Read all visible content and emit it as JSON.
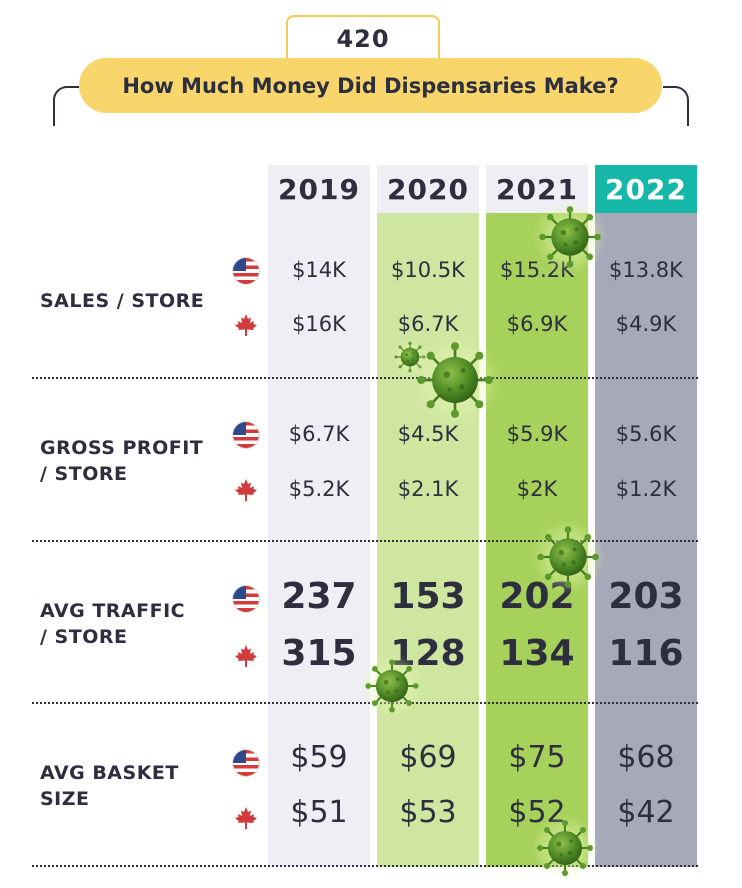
{
  "header": {
    "kicker": "420",
    "title": "How Much Money Did Dispensaries Make?"
  },
  "columns": [
    "2019",
    "2020",
    "2021",
    "2022"
  ],
  "rows": [
    {
      "label": "SALES / STORE",
      "us": [
        "$14K",
        "$10.5K",
        "$15.2K",
        "$13.8K"
      ],
      "ca": [
        "$16K",
        "$6.7K",
        "$6.9K",
        "$4.9K"
      ]
    },
    {
      "label_lines": [
        "GROSS PROFIT",
        "/ STORE"
      ],
      "us": [
        "$6.7K",
        "$4.5K",
        "$5.9K",
        "$5.6K"
      ],
      "ca": [
        "$5.2K",
        "$2.1K",
        "$2K",
        "$1.2K"
      ]
    },
    {
      "label_lines": [
        "AVG TRAFFIC",
        "/ STORE"
      ],
      "us": [
        "237",
        "153",
        "202",
        "203"
      ],
      "ca": [
        "315",
        "128",
        "134",
        "116"
      ]
    },
    {
      "label_lines": [
        "AVG BASKET",
        "SIZE"
      ],
      "us": [
        "$59",
        "$69",
        "$75",
        "$68"
      ],
      "ca": [
        "$51",
        "$53",
        "$52",
        "$42"
      ]
    }
  ],
  "chart_data": {
    "type": "table",
    "title": "How Much Money Did Dispensaries Make?",
    "columns": [
      "2019",
      "2020",
      "2021",
      "2022"
    ],
    "row_groups": [
      "SALES / STORE",
      "GROSS PROFIT / STORE",
      "AVG TRAFFIC / STORE",
      "AVG BASKET SIZE"
    ],
    "series": [
      {
        "name": "US",
        "values": [
          [
            14000,
            10500,
            15200,
            13800
          ],
          [
            6700,
            4500,
            5900,
            5600
          ],
          [
            237,
            153,
            202,
            203
          ],
          [
            59,
            69,
            75,
            68
          ]
        ]
      },
      {
        "name": "Canada",
        "values": [
          [
            16000,
            6700,
            6900,
            4900
          ],
          [
            5200,
            2100,
            2000,
            1200
          ],
          [
            315,
            128,
            134,
            116
          ],
          [
            51,
            53,
            52,
            42
          ]
        ]
      }
    ]
  },
  "icons": {
    "us_flag": "us-flag-icon",
    "ca_flag": "canada-flag-icon",
    "virus": "virus-icon"
  },
  "colors": {
    "col_2019": "#eeeff4",
    "col_2020": "#cfe6a0",
    "col_2021": "#a6d15a",
    "col_2022": "#a6a9b7",
    "highlight": "#15b8a8",
    "title_pill": "#f9d66b"
  }
}
